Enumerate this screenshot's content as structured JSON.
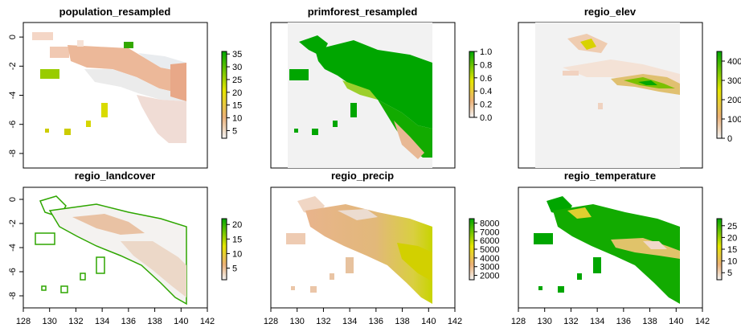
{
  "chart_data": [
    {
      "type": "heatmap",
      "title": "population_resampled",
      "xlim": [
        128,
        142
      ],
      "ylim": [
        -9,
        1
      ],
      "y_ticks": [
        "0",
        "-2",
        "-4",
        "-6",
        "-8"
      ],
      "x_ticks": [],
      "legend": {
        "ticks": [
          "35",
          "30",
          "25",
          "20",
          "15",
          "10",
          "5"
        ],
        "range": [
          2,
          36
        ]
      },
      "ramp": "terrain_rev"
    },
    {
      "type": "heatmap",
      "title": "primforest_resampled",
      "xlim": [
        128,
        142
      ],
      "ylim": [
        -9,
        1
      ],
      "y_ticks": [],
      "x_ticks": [],
      "legend": {
        "ticks": [
          "1.0",
          "0.8",
          "0.6",
          "0.4",
          "0.2",
          "0.0"
        ],
        "range": [
          0,
          1
        ]
      },
      "ramp": "terrain_rev"
    },
    {
      "type": "heatmap",
      "title": "regio_elev",
      "xlim": [
        128,
        142
      ],
      "ylim": [
        -9,
        1
      ],
      "y_ticks": [],
      "x_ticks": [],
      "legend": {
        "ticks": [
          "400",
          "300",
          "200",
          "100",
          "0"
        ],
        "range": [
          0,
          450
        ]
      },
      "ramp": "terrain_rev"
    },
    {
      "type": "heatmap",
      "title": "regio_landcover",
      "xlim": [
        128,
        142
      ],
      "ylim": [
        -9,
        1
      ],
      "y_ticks": [
        "0",
        "-2",
        "-4",
        "-6",
        "-8"
      ],
      "x_ticks": [
        "128",
        "130",
        "132",
        "134",
        "136",
        "138",
        "140",
        "142"
      ],
      "legend": {
        "ticks": [
          "20",
          "15",
          "10",
          "5"
        ],
        "range": [
          1,
          22
        ]
      },
      "ramp": "terrain_rev"
    },
    {
      "type": "heatmap",
      "title": "regio_precip",
      "xlim": [
        128,
        142
      ],
      "ylim": [
        -9,
        1
      ],
      "y_ticks": [],
      "x_ticks": [
        "128",
        "130",
        "132",
        "134",
        "136",
        "138",
        "140",
        "142"
      ],
      "legend": {
        "ticks": [
          "8000",
          "7000",
          "6000",
          "5000",
          "4000",
          "3000",
          "2000"
        ],
        "range": [
          1500,
          8500
        ]
      },
      "ramp": "terrain_rev"
    },
    {
      "type": "heatmap",
      "title": "regio_temperature",
      "xlim": [
        128,
        142
      ],
      "ylim": [
        -9,
        1
      ],
      "y_ticks": [],
      "x_ticks": [
        "128",
        "130",
        "132",
        "134",
        "136",
        "138",
        "140",
        "142"
      ],
      "legend": {
        "ticks": [
          "25",
          "20",
          "15",
          "10",
          "5"
        ],
        "range": [
          2,
          28
        ]
      },
      "ramp": "terrain_rev"
    }
  ],
  "colors": {
    "ramp_high": "#00a600",
    "ramp_mid": "#e6e600",
    "ramp_low_tan": "#ecb176",
    "ramp_min": "#f2f2f2",
    "nodata_bg": "#f2f2f2"
  }
}
